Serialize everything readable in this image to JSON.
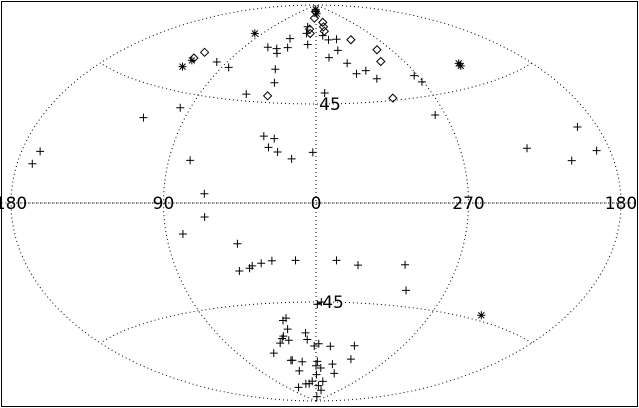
{
  "chart_data": {
    "type": "scatter",
    "projection": "aitoff",
    "grid": true,
    "title": "",
    "xlabel": "",
    "ylabel": "",
    "xlim": [
      180,
      -180
    ],
    "ylim": [
      -90,
      90
    ],
    "lon_tick_labels": [
      {
        "value": 180,
        "label": "180"
      },
      {
        "value": 90,
        "label": "90"
      },
      {
        "value": 0,
        "label": "0"
      },
      {
        "value": -90,
        "label": "270"
      },
      {
        "value": -180,
        "label": "180"
      }
    ],
    "lat_tick_labels": [
      {
        "value": 45,
        "label": "45"
      },
      {
        "value": -45,
        "label": "-45"
      }
    ],
    "series": [
      {
        "marker": "plus",
        "points": [
          [
            3,
            87
          ],
          [
            20,
            80
          ],
          [
            18,
            77
          ],
          [
            12,
            72
          ],
          [
            -12,
            76
          ],
          [
            -20,
            74
          ],
          [
            -28,
            69
          ],
          [
            -33,
            63
          ],
          [
            -38,
            58
          ],
          [
            -15,
            66
          ],
          [
            -48,
            59
          ],
          [
            -33,
            74
          ],
          [
            42,
            74
          ],
          [
            38,
            70
          ],
          [
            51,
            69
          ],
          [
            47,
            67
          ],
          [
            40,
            60
          ],
          [
            36,
            54
          ],
          [
            63,
            69
          ],
          [
            84,
            58
          ],
          [
            -54,
            55
          ],
          [
            -87,
            54
          ],
          [
            -89,
            51
          ],
          [
            -83,
            37
          ],
          [
            -7,
            50
          ],
          [
            55,
            48
          ],
          [
            99,
            59
          ],
          [
            97,
            39
          ],
          [
            117,
            33
          ],
          [
            169,
            16
          ],
          [
            171,
            12
          ],
          [
            -131,
            20
          ],
          [
            -168,
            24
          ],
          [
            -172,
            16
          ],
          [
            -155,
            14
          ],
          [
            34,
            30
          ],
          [
            27,
            29
          ],
          [
            30,
            25
          ],
          [
            24,
            23
          ],
          [
            15,
            20
          ],
          [
            2,
            23
          ],
          [
            77,
            18
          ],
          [
            66,
            4
          ],
          [
            66,
            -6
          ],
          [
            80,
            -13
          ],
          [
            48,
            -18
          ],
          [
            50,
            -30
          ],
          [
            43,
            -29
          ],
          [
            41,
            -28
          ],
          [
            35,
            -27
          ],
          [
            28,
            -26
          ],
          [
            13,
            -26
          ],
          [
            -13,
            -26
          ],
          [
            -27,
            -28
          ],
          [
            -57,
            -27
          ],
          [
            -63,
            -38
          ],
          [
            -1,
            -46
          ],
          [
            -4,
            -45
          ],
          [
            28,
            -53
          ],
          [
            25,
            -52
          ],
          [
            26,
            -57
          ],
          [
            10,
            -59
          ],
          [
            9,
            -62
          ],
          [
            32,
            -60
          ],
          [
            38,
            -63
          ],
          [
            34,
            -61
          ],
          [
            28,
            -62
          ],
          [
            2,
            -65
          ],
          [
            -3,
            -64
          ],
          [
            -16,
            -65
          ],
          [
            51,
            -67
          ],
          [
            35,
            -71
          ],
          [
            33,
            -71
          ],
          [
            20,
            -72
          ],
          [
            30,
            -76
          ],
          [
            -25,
            -73
          ],
          [
            -42,
            -64
          ],
          [
            -2,
            -72
          ],
          [
            0,
            -74
          ],
          [
            -8,
            -75
          ],
          [
            -35,
            -77
          ],
          [
            -47,
            -70
          ],
          [
            -1,
            -78
          ],
          [
            60,
            -83
          ],
          [
            30,
            -82
          ],
          [
            20,
            -82
          ],
          [
            10,
            -81
          ],
          [
            -8,
            -83
          ],
          [
            -23,
            -85
          ],
          [
            -18,
            -81
          ],
          [
            -9,
            -88
          ]
        ]
      },
      {
        "marker": "asterisk",
        "points": [
          [
            3,
            88
          ],
          [
            -4,
            86
          ],
          [
            100,
            73
          ],
          [
            121,
            57
          ],
          [
            122,
            54
          ],
          [
            -132,
            54
          ],
          [
            -131,
            53
          ],
          [
            -126,
            -43
          ]
        ]
      },
      {
        "marker": "diamond",
        "points": [
          [
            4,
            87
          ],
          [
            6,
            84
          ],
          [
            14,
            79
          ],
          [
            11,
            77
          ],
          [
            -20,
            82
          ],
          [
            -18,
            80
          ],
          [
            -17,
            78
          ],
          [
            -54,
            73
          ],
          [
            -75,
            67
          ],
          [
            -68,
            62
          ],
          [
            120,
            61
          ],
          [
            122,
            58
          ],
          [
            38,
            48
          ],
          [
            -59,
            46
          ]
        ]
      }
    ]
  }
}
